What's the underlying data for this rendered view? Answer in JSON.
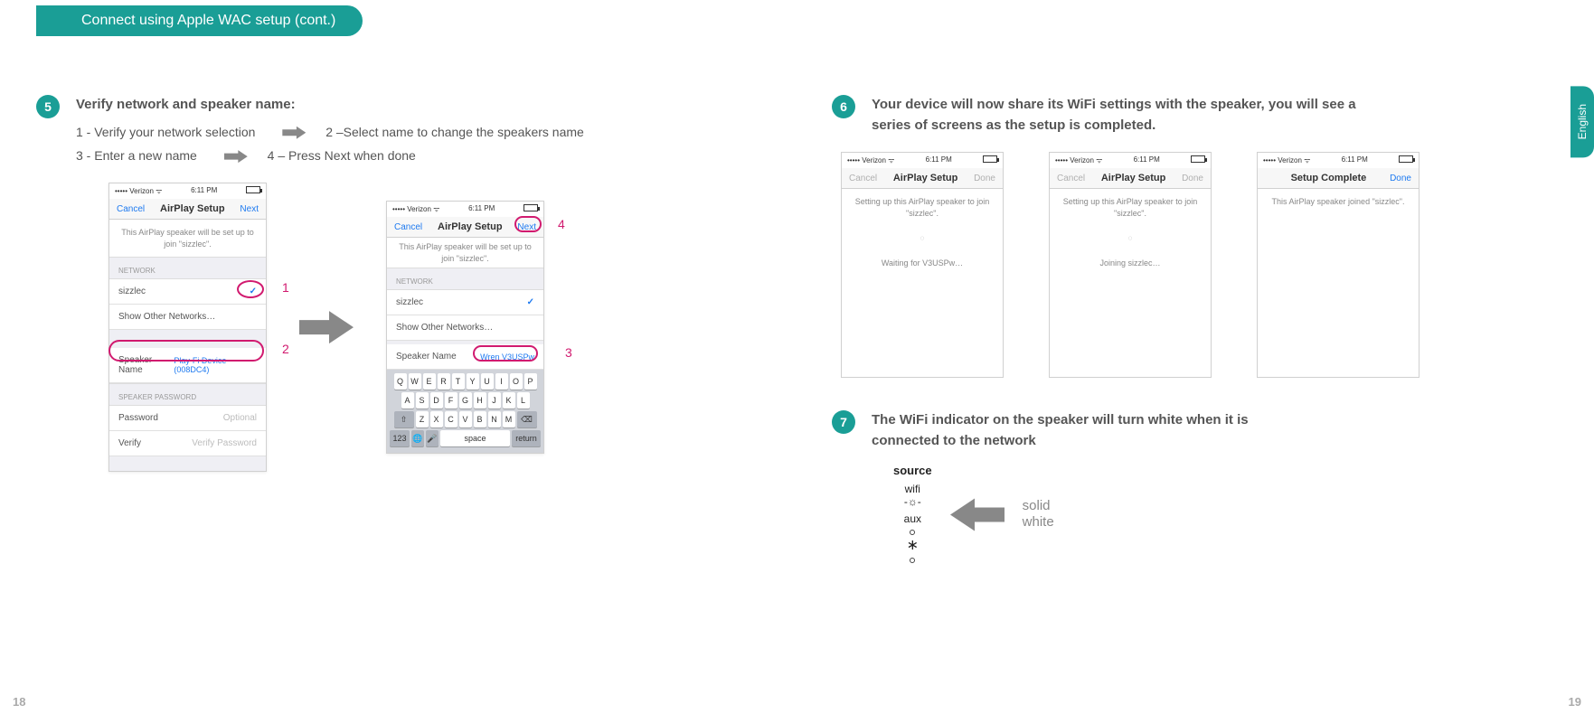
{
  "header": {
    "title": "Connect using Apple WAC setup (cont.)"
  },
  "language_tab": "English",
  "page_left": "18",
  "page_right": "19",
  "step5": {
    "num": "5",
    "title": "Verify network and speaker name:",
    "line1a": "1 - Verify your network selection",
    "line1b": "2 –Select name to change the speakers name",
    "line2a": "3 - Enter a new name",
    "line2b": "4 – Press Next when done"
  },
  "phone_a": {
    "carrier": "••••• Verizon ᯤ",
    "time": "6:11 PM",
    "cancel": "Cancel",
    "title": "AirPlay Setup",
    "next": "Next",
    "msg": "This AirPlay speaker will be set up to join \"sizzlec\".",
    "section_network": "NETWORK",
    "net_name": "sizzlec",
    "show_other": "Show Other Networks…",
    "speaker_name_label": "Speaker Name",
    "speaker_name_value": "Play-Fi Device (008DC4)",
    "section_pw": "SPEAKER PASSWORD",
    "pw_label": "Password",
    "pw_ph": "Optional",
    "verify_label": "Verify",
    "verify_ph": "Verify Password"
  },
  "phone_b": {
    "carrier": "••••• Verizon ᯤ",
    "time": "6:11 PM",
    "cancel": "Cancel",
    "title": "AirPlay Setup",
    "next": "Next",
    "msg": "This AirPlay speaker will be set up to join \"sizzlec\".",
    "section_network": "NETWORK",
    "net_name": "sizzlec",
    "show_other": "Show Other Networks…",
    "speaker_name_label": "Speaker Name",
    "speaker_name_value": "Wren V3USPw",
    "kb_r1": [
      "Q",
      "W",
      "E",
      "R",
      "T",
      "Y",
      "U",
      "I",
      "O",
      "P"
    ],
    "kb_r2": [
      "A",
      "S",
      "D",
      "F",
      "G",
      "H",
      "J",
      "K",
      "L"
    ],
    "kb_r3": [
      "Z",
      "X",
      "C",
      "V",
      "B",
      "N",
      "M"
    ],
    "kb_123": "123",
    "kb_space": "space",
    "kb_return": "return"
  },
  "callouts": {
    "c1": "1",
    "c2": "2",
    "c3": "3",
    "c4": "4"
  },
  "step6": {
    "num": "6",
    "title": "Your device will now share its WiFi settings with the speaker, you will see a series of screens as the setup is completed."
  },
  "phone_c": {
    "carrier": "••••• Verizon ᯤ",
    "time": "6:11 PM",
    "cancel": "Cancel",
    "title": "AirPlay Setup",
    "done": "Done",
    "msg": "Setting up this AirPlay speaker to join \"sizzlec\".",
    "status": "Waiting for V3USPw…"
  },
  "phone_d": {
    "carrier": "••••• Verizon ᯤ",
    "time": "6:11 PM",
    "cancel": "Cancel",
    "title": "AirPlay Setup",
    "done": "Done",
    "msg": "Setting up this AirPlay speaker to join \"sizzlec\".",
    "status": "Joining sizzlec…"
  },
  "phone_e": {
    "carrier": "••••• Verizon ᯤ",
    "time": "6:11 PM",
    "title": "Setup Complete",
    "done": "Done",
    "msg": "This AirPlay speaker joined \"sizzlec\"."
  },
  "step7": {
    "num": "7",
    "title": "The WiFi indicator on the speaker will turn white when it is connected to the network"
  },
  "source_panel": {
    "source": "source",
    "wifi": "wifi",
    "aux": "aux",
    "solid": "solid",
    "white": "white"
  }
}
